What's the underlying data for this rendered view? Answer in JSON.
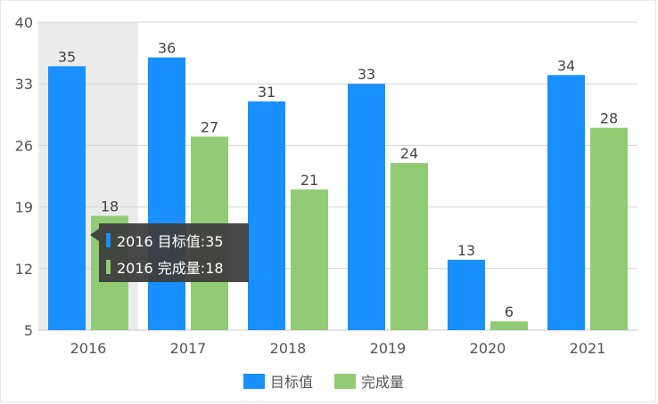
{
  "chart_data": {
    "type": "bar",
    "categories": [
      "2016",
      "2017",
      "2018",
      "2019",
      "2020",
      "2021"
    ],
    "series": [
      {
        "name": "目标值",
        "values": [
          35,
          36,
          31,
          33,
          13,
          34
        ],
        "color": "#1890ff"
      },
      {
        "name": "完成量",
        "values": [
          18,
          27,
          21,
          24,
          6,
          28
        ],
        "color": "#91cc75"
      }
    ],
    "yticks": [
      5,
      12,
      19,
      26,
      33,
      40
    ],
    "ylim": [
      5,
      40
    ],
    "grid": true,
    "legend": "bottom-center",
    "highlight_category": "2016",
    "highlight_color": "#ebebeb",
    "tooltip": {
      "category": "2016",
      "lines": [
        "2016 目标值:35",
        "2016 完成量:18"
      ],
      "background": "#3d3d3d"
    }
  }
}
